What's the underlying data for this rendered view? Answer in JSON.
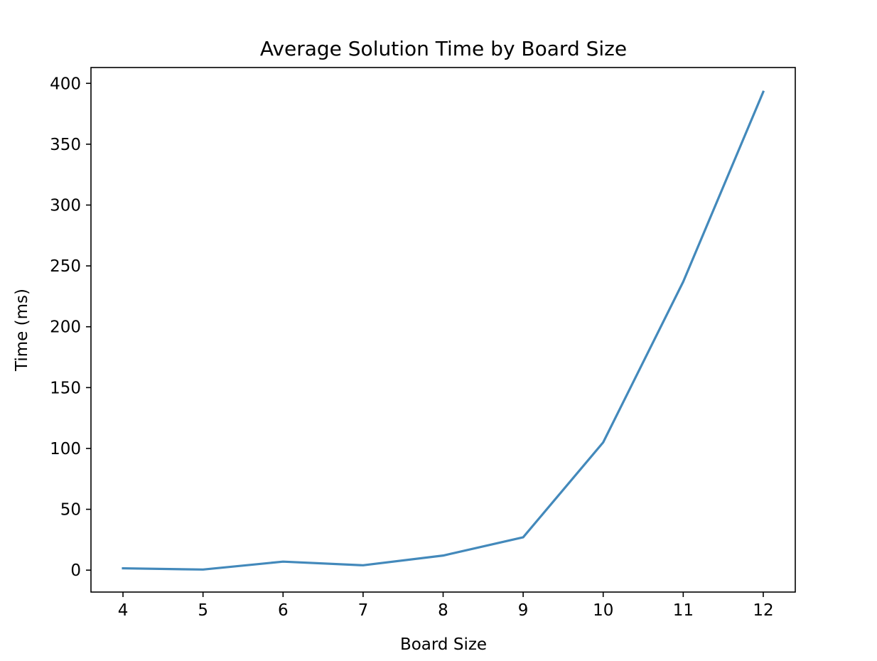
{
  "chart_data": {
    "type": "line",
    "title": "Average Solution Time by Board Size",
    "xlabel": "Board Size",
    "ylabel": "Time (ms)",
    "x": [
      4,
      5,
      6,
      7,
      8,
      9,
      10,
      11,
      12
    ],
    "series": [
      {
        "values": [
          1.5,
          0.5,
          7,
          4,
          12,
          27,
          105,
          237,
          393
        ],
        "color": "#4389bb"
      }
    ],
    "xlim": [
      3.6,
      12.4
    ],
    "ylim": [
      -18,
      413
    ],
    "xticks": [
      "4",
      "5",
      "6",
      "7",
      "8",
      "9",
      "10",
      "11",
      "12"
    ],
    "yticks": [
      "0",
      "50",
      "100",
      "150",
      "200",
      "250",
      "300",
      "350",
      "400"
    ],
    "grid": false,
    "legend": "none"
  }
}
